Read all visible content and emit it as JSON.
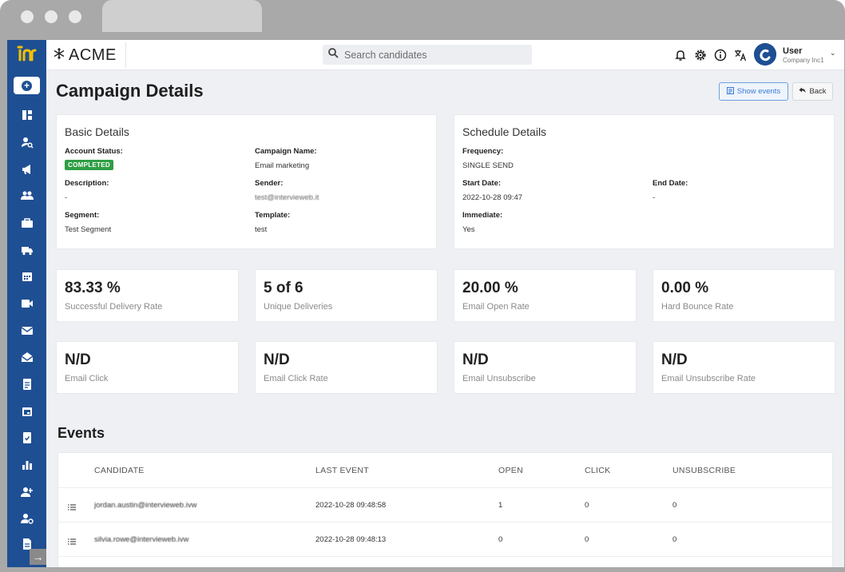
{
  "brand": {
    "name": "ACME"
  },
  "search": {
    "placeholder": "Search candidates"
  },
  "user": {
    "name": "User",
    "company": "Company Inc1"
  },
  "page": {
    "title": "Campaign Details",
    "show_events": "Show events",
    "back": "Back"
  },
  "basic": {
    "title": "Basic Details",
    "account_status_label": "Account Status:",
    "account_status": "COMPLETED",
    "campaign_name_label": "Campaign Name:",
    "campaign_name": "Email marketing",
    "description_label": "Description:",
    "description": "-",
    "sender_label": "Sender:",
    "sender": "test@intervieweb.it",
    "segment_label": "Segment:",
    "segment": "Test Segment",
    "template_label": "Template:",
    "template": "test"
  },
  "schedule": {
    "title": "Schedule Details",
    "frequency_label": "Frequency:",
    "frequency": "SINGLE SEND",
    "start_label": "Start Date:",
    "start": "2022-10-28 09:47",
    "end_label": "End Date:",
    "end": "-",
    "immediate_label": "Immediate:",
    "immediate": "Yes"
  },
  "stats": [
    {
      "value": "83.33 %",
      "label": "Successful Delivery Rate"
    },
    {
      "value": "5 of 6",
      "label": "Unique Deliveries"
    },
    {
      "value": "20.00 %",
      "label": "Email Open Rate"
    },
    {
      "value": "0.00 %",
      "label": "Hard Bounce Rate"
    },
    {
      "value": "N/D",
      "label": "Email Click"
    },
    {
      "value": "N/D",
      "label": "Email Click Rate"
    },
    {
      "value": "N/D",
      "label": "Email Unsubscribe"
    },
    {
      "value": "N/D",
      "label": "Email Unsubscribe Rate"
    }
  ],
  "events": {
    "title": "Events",
    "columns": [
      "CANDIDATE",
      "LAST EVENT",
      "OPEN",
      "CLICK",
      "UNSUBSCRIBE"
    ],
    "rows": [
      {
        "candidate": "jordan.austin@intervieweb.ivw",
        "last_event": "2022-10-28 09:48:58",
        "open": "1",
        "click": "0",
        "unsubscribe": "0"
      },
      {
        "candidate": "silvia.rowe@intervieweb.ivw",
        "last_event": "2022-10-28 09:48:13",
        "open": "0",
        "click": "0",
        "unsubscribe": "0"
      }
    ]
  }
}
